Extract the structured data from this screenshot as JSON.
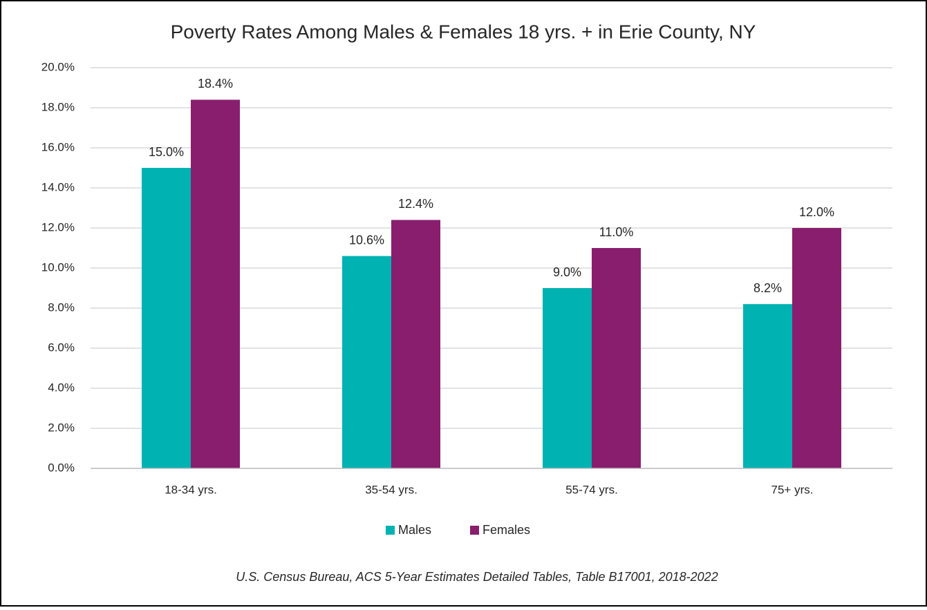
{
  "chart_data": {
    "type": "bar",
    "title": "Poverty Rates Among Males & Females 18 yrs. + in Erie County, NY",
    "caption": "U.S. Census Bureau, ACS 5-Year Estimates Detailed Tables, Table B17001, 2018-2022",
    "categories": [
      "18-34 yrs.",
      "35-54 yrs.",
      "55-74 yrs.",
      "75+ yrs."
    ],
    "series": [
      {
        "name": "Males",
        "color": "#00b2b2",
        "values": [
          15.0,
          10.6,
          9.0,
          8.2
        ],
        "value_labels": [
          "15.0%",
          "10.6%",
          "9.0%",
          "8.2%"
        ]
      },
      {
        "name": "Females",
        "color": "#891e6e",
        "values": [
          18.4,
          12.4,
          11.0,
          12.0
        ],
        "value_labels": [
          "18.4%",
          "12.4%",
          "11.0%",
          "12.0%"
        ]
      }
    ],
    "ylim": [
      0,
      20
    ],
    "yticks": [
      {
        "value": 0,
        "label": "0.0%"
      },
      {
        "value": 2,
        "label": "2.0%"
      },
      {
        "value": 4,
        "label": "4.0%"
      },
      {
        "value": 6,
        "label": "6.0%"
      },
      {
        "value": 8,
        "label": "8.0%"
      },
      {
        "value": 10,
        "label": "10.0%"
      },
      {
        "value": 12,
        "label": "12.0%"
      },
      {
        "value": 14,
        "label": "14.0%"
      },
      {
        "value": 16,
        "label": "16.0%"
      },
      {
        "value": 18,
        "label": "18.0%"
      },
      {
        "value": 20,
        "label": "20.0%"
      }
    ],
    "grid": true,
    "legend": "bottom"
  }
}
